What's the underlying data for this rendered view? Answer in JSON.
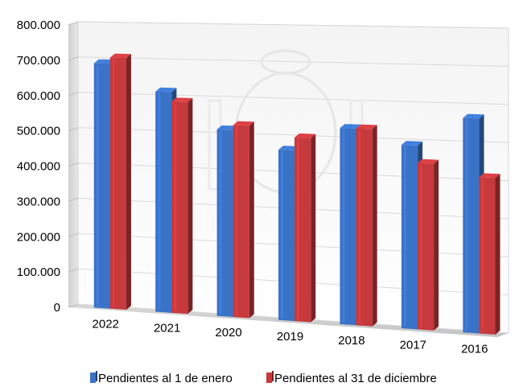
{
  "chart_data": {
    "type": "bar",
    "title": "",
    "xlabel": "",
    "ylabel": "",
    "ylim": [
      0,
      800000
    ],
    "yticks": [
      "0",
      "100.000",
      "200.000",
      "300.000",
      "400.000",
      "500.000",
      "600.000",
      "700.000",
      "800.000"
    ],
    "categories": [
      "2022",
      "2021",
      "2020",
      "2019",
      "2018",
      "2017",
      "2016"
    ],
    "series": [
      {
        "name": "Pendientes al 1 de enero",
        "color": "#3a72c7",
        "values": [
          690000,
          615000,
          515000,
          465000,
          530000,
          490000,
          567000
        ]
      },
      {
        "name": "Pendientes al 31 de diciembre",
        "color": "#c6393c",
        "values": [
          707000,
          588000,
          528000,
          500000,
          530000,
          443000,
          412000
        ]
      }
    ],
    "grid": true,
    "legend_position": "bottom"
  }
}
